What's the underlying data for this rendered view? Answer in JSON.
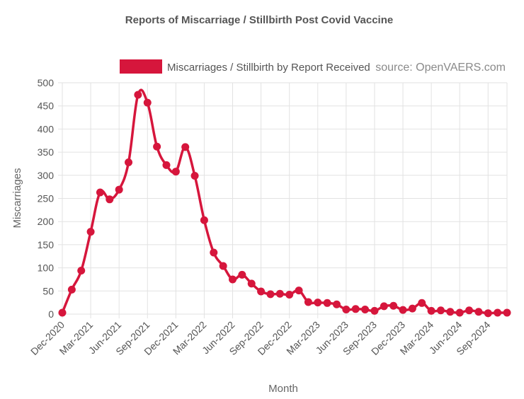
{
  "chart_data": {
    "type": "line",
    "title": "Reports of Miscarriage / Stillbirth Post Covid Vaccine",
    "xlabel": "Month",
    "ylabel": "Miscarriages",
    "ylim": [
      0,
      500
    ],
    "yticks": [
      0,
      50,
      100,
      150,
      200,
      250,
      300,
      350,
      400,
      450,
      500
    ],
    "grid": true,
    "legend_position": "top-right",
    "source_note": "source: OpenVAERS.com",
    "x_tick_labels": [
      "Dec-2020",
      "Mar-2021",
      "Jun-2021",
      "Sep-2021",
      "Dec-2021",
      "Mar-2022",
      "Jun-2022",
      "Sep-2022",
      "Dec-2022",
      "Mar-2023",
      "Jun-2023",
      "Sep-2023",
      "Dec-2023",
      "Mar-2024",
      "Jun-2024",
      "Sep-2024"
    ],
    "x": [
      "Dec-2020",
      "Jan-2021",
      "Feb-2021",
      "Mar-2021",
      "Apr-2021",
      "May-2021",
      "Jun-2021",
      "Jul-2021",
      "Aug-2021",
      "Sep-2021",
      "Oct-2021",
      "Nov-2021",
      "Dec-2021",
      "Jan-2022",
      "Feb-2022",
      "Mar-2022",
      "Apr-2022",
      "May-2022",
      "Jun-2022",
      "Jul-2022",
      "Aug-2022",
      "Sep-2022",
      "Oct-2022",
      "Nov-2022",
      "Dec-2022",
      "Jan-2023",
      "Feb-2023",
      "Mar-2023",
      "Apr-2023",
      "May-2023",
      "Jun-2023",
      "Jul-2023",
      "Aug-2023",
      "Sep-2023",
      "Oct-2023",
      "Nov-2023",
      "Dec-2023",
      "Jan-2024",
      "Feb-2024",
      "Mar-2024",
      "Apr-2024",
      "May-2024",
      "Jun-2024",
      "Jul-2024",
      "Aug-2024",
      "Sep-2024",
      "Oct-2024",
      "Nov-2024"
    ],
    "series": [
      {
        "name": "Miscarriages / Stillbirth by Report Received",
        "color": "#d6163c",
        "values": [
          3,
          53,
          94,
          178,
          263,
          248,
          269,
          328,
          474,
          457,
          362,
          322,
          308,
          361,
          299,
          203,
          133,
          104,
          75,
          85,
          66,
          49,
          43,
          44,
          42,
          51,
          26,
          25,
          24,
          21,
          10,
          11,
          10,
          7,
          17,
          18,
          9,
          12,
          24,
          7,
          8,
          5,
          3,
          8,
          5,
          2,
          3,
          3
        ]
      }
    ]
  }
}
